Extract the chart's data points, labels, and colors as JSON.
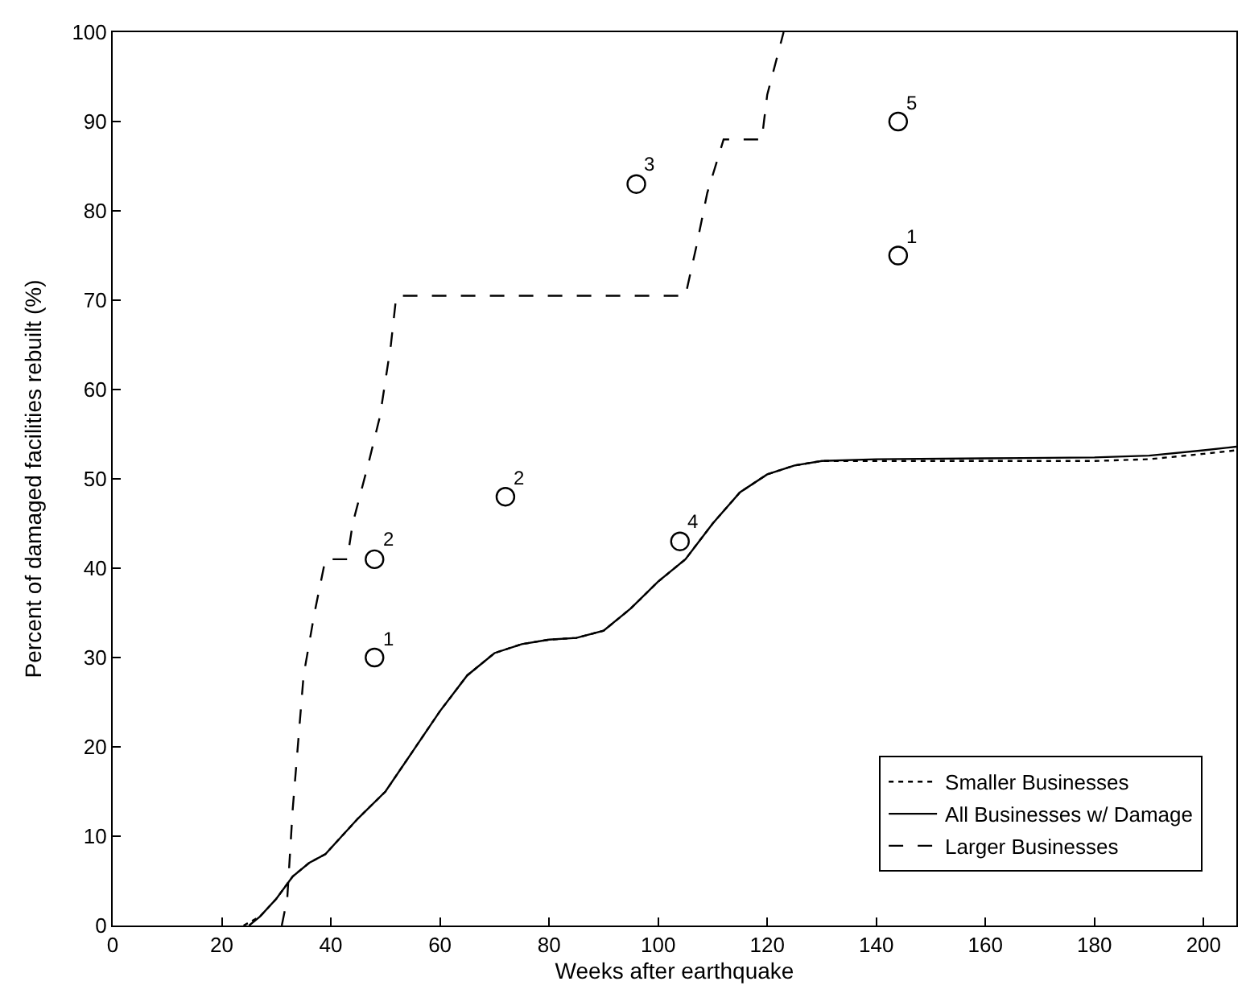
{
  "chart_data": {
    "type": "line",
    "xlabel": "Weeks after earthquake",
    "ylabel": "Percent of damaged facilities rebuilt (%)",
    "xlim": [
      0,
      206
    ],
    "ylim": [
      0,
      100
    ],
    "xticks": [
      0,
      20,
      40,
      60,
      80,
      100,
      120,
      140,
      160,
      180,
      200
    ],
    "yticks": [
      0,
      10,
      20,
      30,
      40,
      50,
      60,
      70,
      80,
      90,
      100
    ],
    "legend": "bottom right",
    "marker": "none",
    "series": [
      {
        "name": "Smaller Businesses",
        "color": "#000000",
        "line_style": "dotted",
        "x": [
          24,
          27,
          30,
          33,
          36,
          39,
          42,
          45,
          50,
          55,
          60,
          65,
          70,
          75,
          80,
          85,
          90,
          95,
          100,
          105,
          110,
          115,
          120,
          125,
          130,
          140,
          160,
          180,
          190,
          200,
          206
        ],
        "values": [
          0,
          1,
          3,
          5.5,
          7,
          8,
          10,
          12,
          15,
          19.5,
          24,
          28,
          30.5,
          31.5,
          32,
          32.2,
          33,
          35.5,
          38.5,
          41,
          45,
          48.5,
          50.5,
          51.5,
          52,
          52,
          52,
          52,
          52.2,
          52.8,
          53.2
        ]
      },
      {
        "name": "All Businesses w/ Damage",
        "color": "#000000",
        "line_style": "solid",
        "x": [
          25,
          27,
          30,
          33,
          36,
          39,
          42,
          45,
          50,
          55,
          60,
          65,
          70,
          75,
          80,
          85,
          90,
          95,
          100,
          105,
          110,
          115,
          120,
          125,
          130,
          140,
          160,
          180,
          190,
          200,
          206
        ],
        "values": [
          0,
          1,
          3,
          5.5,
          7,
          8,
          10,
          12,
          15,
          19.5,
          24,
          28,
          30.5,
          31.5,
          32,
          32.2,
          33,
          35.5,
          38.5,
          41,
          45,
          48.5,
          50.5,
          51.5,
          52,
          52.2,
          52.3,
          52.4,
          52.6,
          53.2,
          53.6
        ]
      },
      {
        "name": "Larger Businesses",
        "color": "#000000",
        "line_style": "dashed",
        "x": [
          31,
          32,
          33,
          35,
          37,
          39,
          43,
          44,
          47,
          49,
          51,
          52,
          105,
          107,
          109,
          112,
          119,
          120,
          123
        ],
        "values": [
          0,
          3,
          13,
          28,
          35,
          41,
          41,
          45,
          52,
          57,
          65,
          70.5,
          70.5,
          76,
          82,
          88,
          88,
          93,
          100
        ]
      },
      {
        "type": "scatter",
        "marker": "circle",
        "color": "#000000",
        "x": [
          48,
          48,
          72,
          96,
          104,
          144,
          144
        ],
        "values": [
          30,
          41,
          48,
          83,
          43,
          90,
          75
        ]
      }
    ],
    "annotations": [
      {
        "text": "1",
        "x": 48,
        "y": 30
      },
      {
        "text": "2",
        "x": 48,
        "y": 41
      },
      {
        "text": "2",
        "x": 72,
        "y": 48
      },
      {
        "text": "3",
        "x": 96,
        "y": 83
      },
      {
        "text": "4",
        "x": 104,
        "y": 43
      },
      {
        "text": "5",
        "x": 144,
        "y": 90
      },
      {
        "text": "1",
        "x": 144,
        "y": 75
      }
    ]
  }
}
